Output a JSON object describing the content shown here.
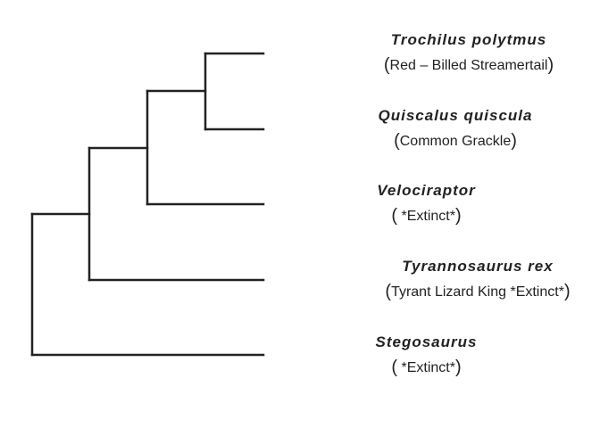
{
  "diagram": {
    "type": "phylogenetic-tree",
    "taxa": [
      {
        "scientific": "Trochilus polytmus",
        "common": "Red – Billed Streamertail"
      },
      {
        "scientific": "Quiscalus quiscula",
        "common": "Common Grackle"
      },
      {
        "scientific": "Velociraptor",
        "common": " *Extinct*"
      },
      {
        "scientific": "Tyrannosaurus rex",
        "common": "Tyrant Lizard King *Extinct*"
      },
      {
        "scientific": "Stegosaurus",
        "common": " *Extinct*"
      }
    ],
    "topology": "(Stegosaurus,(Tyrannosaurus rex,(Velociraptor,(Trochilus polytmus,Quiscalus quiscula))))",
    "line_color": "#222222"
  }
}
